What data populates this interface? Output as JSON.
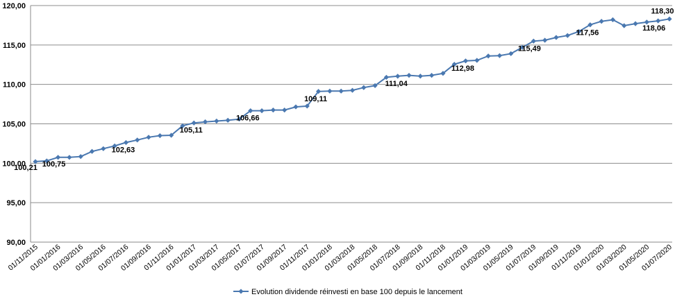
{
  "chart_data": {
    "type": "line",
    "ylim": [
      90,
      120
    ],
    "y_ticks": [
      "90,00",
      "95,00",
      "100,00",
      "105,00",
      "110,00",
      "115,00",
      "120,00"
    ],
    "y_tick_values": [
      90,
      95,
      100,
      105,
      110,
      115,
      120
    ],
    "x_tick_labels": [
      "01/11/2015",
      "01/01/2016",
      "01/03/2016",
      "01/05/2016",
      "01/07/2016",
      "01/09/2016",
      "01/11/2016",
      "01/01/2017",
      "01/03/2017",
      "01/05/2017",
      "01/07/2017",
      "01/09/2017",
      "01/11/2017",
      "01/01/2018",
      "01/03/2018",
      "01/05/2018",
      "01/07/2018",
      "01/09/2018",
      "01/11/2018",
      "01/01/2019",
      "01/03/2019",
      "01/05/2019",
      "01/07/2019",
      "01/09/2019",
      "01/11/2019",
      "01/01/2020",
      "01/03/2020",
      "01/05/2020",
      "01/07/2020"
    ],
    "grid": "horizontal",
    "legend_position": "bottom",
    "series": [
      {
        "name": "Evolution dividende réinvesti en base 100 depuis le lancement",
        "color": "#4a78b0",
        "marker": "diamond",
        "values": [
          100.21,
          100.3,
          100.75,
          100.75,
          100.85,
          101.5,
          101.85,
          102.2,
          102.63,
          102.95,
          103.3,
          103.5,
          103.55,
          104.75,
          105.11,
          105.25,
          105.35,
          105.45,
          105.6,
          106.66,
          106.66,
          106.75,
          106.75,
          107.15,
          107.25,
          109.11,
          109.15,
          109.15,
          109.25,
          109.6,
          109.85,
          110.9,
          111.04,
          111.15,
          111.05,
          111.15,
          111.4,
          112.55,
          112.98,
          113.05,
          113.6,
          113.65,
          113.9,
          114.7,
          115.49,
          115.6,
          115.95,
          116.2,
          116.7,
          117.56,
          118.0,
          118.2,
          117.45,
          117.7,
          117.9,
          118.06,
          118.3
        ]
      }
    ],
    "data_labels": [
      {
        "index": 0,
        "text": "100,21"
      },
      {
        "index": 2,
        "text": "100,75"
      },
      {
        "index": 8,
        "text": "102,63"
      },
      {
        "index": 14,
        "text": "105,11"
      },
      {
        "index": 19,
        "text": "106,66"
      },
      {
        "index": 25,
        "text": "109,11"
      },
      {
        "index": 32,
        "text": "111,04"
      },
      {
        "index": 38,
        "text": "112,98"
      },
      {
        "index": 44,
        "text": "115,49"
      },
      {
        "index": 49,
        "text": "117,56"
      },
      {
        "index": 55,
        "text": "118,06"
      },
      {
        "index": 56,
        "text": "118,30"
      }
    ]
  }
}
